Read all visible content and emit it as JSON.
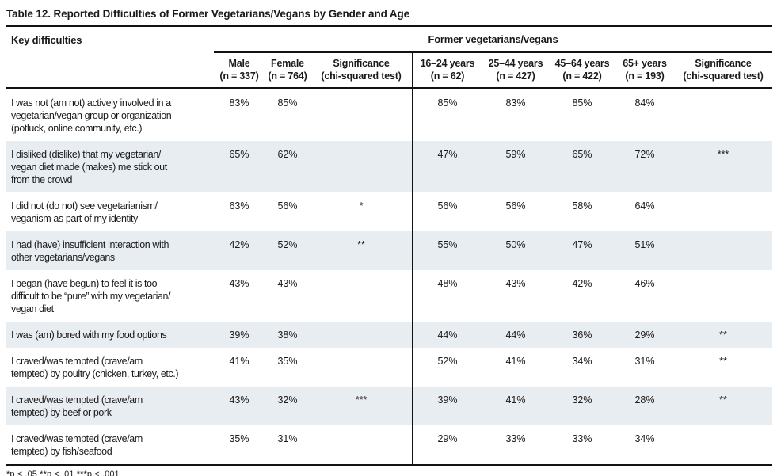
{
  "title": "Table 12. Reported Difficulties of Former Vegetarians/Vegans by Gender and Age",
  "colors": {
    "row_shade": "#e8edf2",
    "rule": "#121212",
    "text": "#1a1a1a"
  },
  "table": {
    "key_column_header": "Key difficulties",
    "group_header": "Former vegetarians/vegans",
    "gender_columns": [
      "Male\n(n = 337)",
      "Female\n(n = 764)",
      "Significance\n(chi-squared test)"
    ],
    "age_columns": [
      "16–24 years\n(n = 62)",
      "25–44 years\n(n = 427)",
      "45–64 years\n(n = 422)",
      "65+ years\n(n = 193)",
      "Significance\n(chi-squared test)"
    ],
    "rows": [
      {
        "label": "I was not (am not) actively involved in a\nvegetarian/vegan group or organization\n(potluck, online community, etc.)",
        "male": "83%",
        "female": "85%",
        "sig_gender": "",
        "age_16_24": "85%",
        "age_25_44": "83%",
        "age_45_64": "85%",
        "age_65": "84%",
        "sig_age": ""
      },
      {
        "label": "I disliked (dislike) that my vegetarian/\nvegan diet made (makes) me stick out\nfrom the crowd",
        "male": "65%",
        "female": "62%",
        "sig_gender": "",
        "age_16_24": "47%",
        "age_25_44": "59%",
        "age_45_64": "65%",
        "age_65": "72%",
        "sig_age": "***"
      },
      {
        "label": "I did not (do not) see vegetarianism/\nveganism as part of my identity",
        "male": "63%",
        "female": "56%",
        "sig_gender": "*",
        "age_16_24": "56%",
        "age_25_44": "56%",
        "age_45_64": "58%",
        "age_65": "64%",
        "sig_age": ""
      },
      {
        "label": "I had (have) insufficient interaction with\nother vegetarians/vegans",
        "male": "42%",
        "female": "52%",
        "sig_gender": "**",
        "age_16_24": "55%",
        "age_25_44": "50%",
        "age_45_64": "47%",
        "age_65": "51%",
        "sig_age": ""
      },
      {
        "label": "I began (have begun) to feel it is too\ndifficult to be “pure” with my vegetarian/\nvegan diet",
        "male": "43%",
        "female": "43%",
        "sig_gender": "",
        "age_16_24": "48%",
        "age_25_44": "43%",
        "age_45_64": "42%",
        "age_65": "46%",
        "sig_age": ""
      },
      {
        "label": "I was (am) bored with my food options",
        "male": "39%",
        "female": "38%",
        "sig_gender": "",
        "age_16_24": "44%",
        "age_25_44": "44%",
        "age_45_64": "36%",
        "age_65": "29%",
        "sig_age": "**"
      },
      {
        "label": "I craved/was tempted (crave/am\ntempted) by poultry (chicken, turkey, etc.)",
        "male": "41%",
        "female": "35%",
        "sig_gender": "",
        "age_16_24": "52%",
        "age_25_44": "41%",
        "age_45_64": "34%",
        "age_65": "31%",
        "sig_age": "**"
      },
      {
        "label": "I craved/was tempted (crave/am\ntempted) by beef or pork",
        "male": "43%",
        "female": "32%",
        "sig_gender": "***",
        "age_16_24": "39%",
        "age_25_44": "41%",
        "age_45_64": "32%",
        "age_65": "28%",
        "sig_age": "**"
      },
      {
        "label": "I craved/was tempted (crave/am\ntempted) by fish/seafood",
        "male": "35%",
        "female": "31%",
        "sig_gender": "",
        "age_16_24": "29%",
        "age_25_44": "33%",
        "age_45_64": "33%",
        "age_65": "34%",
        "sig_age": ""
      }
    ]
  },
  "footnote": "*p < .05 **p < .01 ***p < .001"
}
